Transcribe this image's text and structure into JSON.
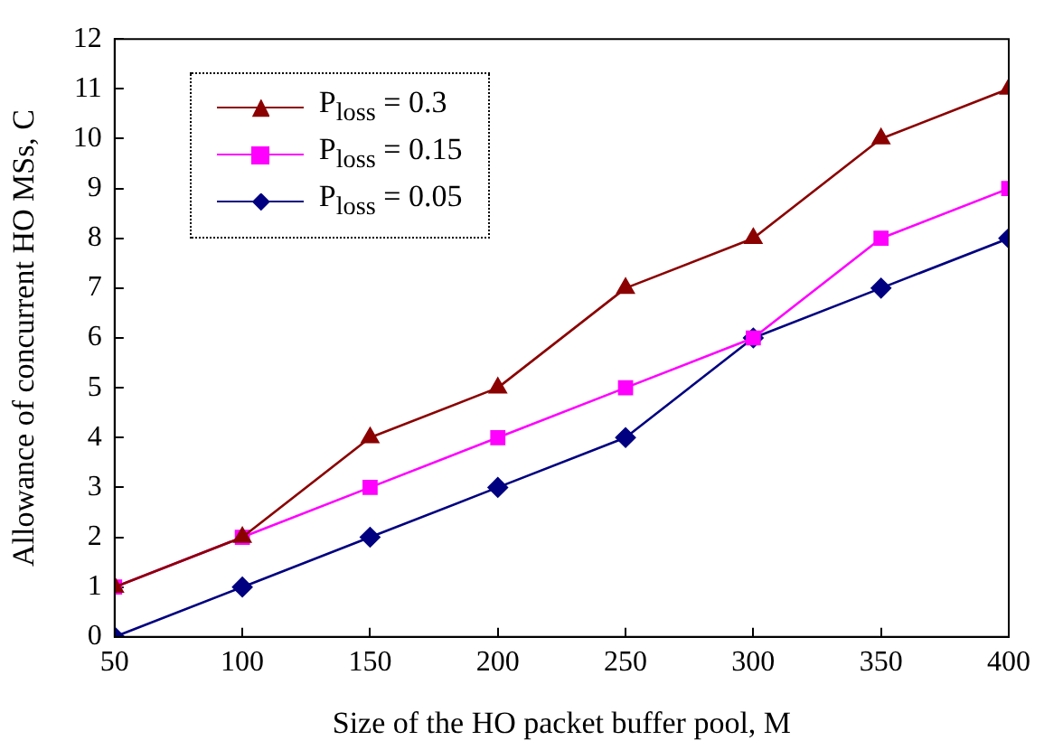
{
  "chart_data": {
    "type": "line",
    "xlabel": "Size of the HO packet buffer pool, M",
    "ylabel": "Allowance of concurrent HO MSs, C",
    "x": [
      50,
      100,
      150,
      200,
      250,
      300,
      350,
      400
    ],
    "xlim": [
      50,
      400
    ],
    "xticks": [
      50,
      100,
      150,
      200,
      250,
      300,
      350,
      400
    ],
    "ylim": [
      0,
      12
    ],
    "yticks": [
      0,
      1,
      2,
      3,
      4,
      5,
      6,
      7,
      8,
      9,
      10,
      11,
      12
    ],
    "grid": false,
    "legend": "top left",
    "line_style": "solid",
    "series": [
      {
        "name": "P$_{loss}$ = 0.3",
        "color": "#8b0000",
        "marker": "triangle",
        "values": [
          1,
          2,
          4,
          5,
          7,
          8,
          10,
          11
        ]
      },
      {
        "name": "P$_{loss}$ = 0.15",
        "color": "#ff00ff",
        "marker": "square",
        "values": [
          1,
          2,
          3,
          4,
          5,
          6,
          8,
          9
        ]
      },
      {
        "name": "P$_{loss}$ = 0.05",
        "color": "#000080",
        "marker": "diamond",
        "values": [
          0,
          1,
          2,
          3,
          4,
          6,
          7,
          8
        ]
      }
    ]
  }
}
